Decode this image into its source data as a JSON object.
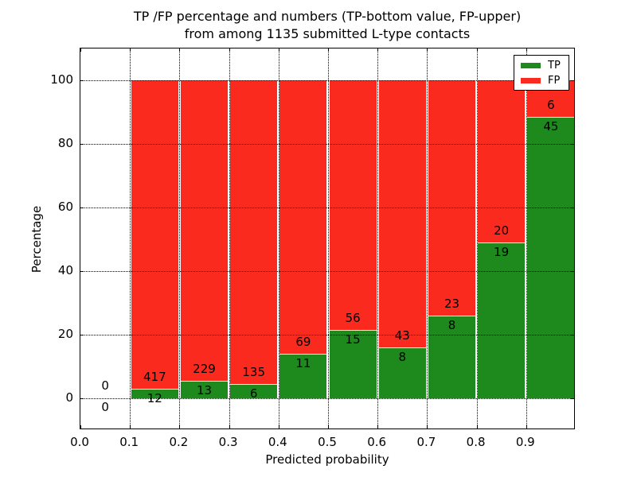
{
  "title": {
    "line1": "TP /FP percentage and numbers (TP-bottom value, FP-upper)",
    "line2": "from among 1135 submitted L-type contacts"
  },
  "colors": {
    "tp": "#1e8a1e",
    "fp": "#fb2a1e",
    "grid": "#000000",
    "text": "#000000",
    "background": "#ffffff"
  },
  "legend": {
    "entries": [
      {
        "label": "TP",
        "color_key": "tp"
      },
      {
        "label": "FP",
        "color_key": "fp"
      }
    ]
  },
  "chart_data": {
    "type": "bar",
    "stacked": true,
    "title": "TP /FP percentage and numbers (TP-bottom value, FP-upper) from among 1135 submitted L-type contacts",
    "xlabel": "Predicted probability",
    "ylabel": "Percentage",
    "total_contacts": 1135,
    "xlim": [
      0.0,
      1.0
    ],
    "ylim": [
      -10,
      110
    ],
    "grid": true,
    "grid_style": "dotted",
    "legend_position": "upper right",
    "xtick_values": [
      0.0,
      0.1,
      0.2,
      0.3,
      0.4,
      0.5,
      0.6,
      0.7,
      0.8,
      0.9
    ],
    "xtick_labels": [
      "0.0",
      "0.1",
      "0.2",
      "0.3",
      "0.4",
      "0.5",
      "0.6",
      "0.7",
      "0.8",
      "0.9"
    ],
    "ytick_values": [
      0,
      20,
      40,
      60,
      80,
      100
    ],
    "ytick_labels": [
      "0",
      "20",
      "40",
      "60",
      "80",
      "100"
    ],
    "series": [
      {
        "name": "TP",
        "counts": [
          0,
          12,
          13,
          6,
          11,
          15,
          8,
          8,
          19,
          45
        ]
      },
      {
        "name": "FP",
        "counts": [
          0,
          417,
          229,
          135,
          69,
          56,
          43,
          23,
          20,
          6
        ]
      }
    ],
    "bins": [
      {
        "x_start": 0.0,
        "x_end": 0.1,
        "tp_count": 0,
        "fp_count": 0,
        "tp_pct": 0.0,
        "fp_pct": 0.0,
        "tp_label": "0",
        "fp_label": "0"
      },
      {
        "x_start": 0.1,
        "x_end": 0.2,
        "tp_count": 12,
        "fp_count": 417,
        "tp_pct": 2.8,
        "fp_pct": 97.2,
        "tp_label": "12",
        "fp_label": "417"
      },
      {
        "x_start": 0.2,
        "x_end": 0.3,
        "tp_count": 13,
        "fp_count": 229,
        "tp_pct": 5.37,
        "fp_pct": 94.63,
        "tp_label": "13",
        "fp_label": "229"
      },
      {
        "x_start": 0.3,
        "x_end": 0.4,
        "tp_count": 6,
        "fp_count": 135,
        "tp_pct": 4.26,
        "fp_pct": 95.74,
        "tp_label": "6",
        "fp_label": "135"
      },
      {
        "x_start": 0.4,
        "x_end": 0.5,
        "tp_count": 11,
        "fp_count": 69,
        "tp_pct": 13.75,
        "fp_pct": 86.25,
        "tp_label": "11",
        "fp_label": "69"
      },
      {
        "x_start": 0.5,
        "x_end": 0.6,
        "tp_count": 15,
        "fp_count": 56,
        "tp_pct": 21.13,
        "fp_pct": 78.87,
        "tp_label": "15",
        "fp_label": "56"
      },
      {
        "x_start": 0.6,
        "x_end": 0.7,
        "tp_count": 8,
        "fp_count": 43,
        "tp_pct": 15.69,
        "fp_pct": 84.31,
        "tp_label": "8",
        "fp_label": "43"
      },
      {
        "x_start": 0.7,
        "x_end": 0.8,
        "tp_count": 8,
        "fp_count": 23,
        "tp_pct": 25.81,
        "fp_pct": 74.19,
        "tp_label": "8",
        "fp_label": "23"
      },
      {
        "x_start": 0.8,
        "x_end": 0.9,
        "tp_count": 19,
        "fp_count": 20,
        "tp_pct": 48.72,
        "fp_pct": 51.28,
        "tp_label": "19",
        "fp_label": "20"
      },
      {
        "x_start": 0.9,
        "x_end": 1.0,
        "tp_count": 45,
        "fp_count": 6,
        "tp_pct": 88.24,
        "fp_pct": 11.76,
        "tp_label": "45",
        "fp_label": "6"
      }
    ]
  }
}
